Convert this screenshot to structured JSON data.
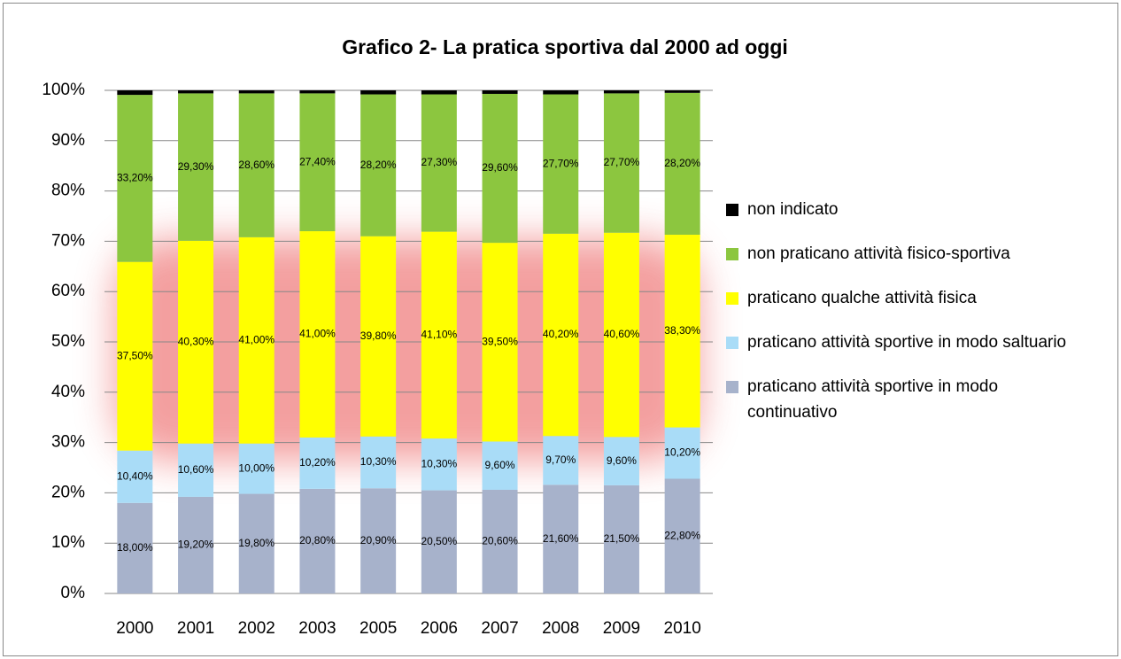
{
  "chart_data": {
    "type": "stacked_bar",
    "title": "Grafico 2- La pratica sportiva dal 2000 ad oggi",
    "categories": [
      "2000",
      "2001",
      "2002",
      "2003",
      "2005",
      "2006",
      "2007",
      "2008",
      "2009",
      "2010"
    ],
    "series": [
      {
        "name": "praticano attività sportive in modo continuativo",
        "color": "#a7b2cb",
        "values": [
          18.0,
          19.2,
          19.8,
          20.8,
          20.9,
          20.5,
          20.6,
          21.6,
          21.5,
          22.8
        ],
        "value_labels": [
          "18,00%",
          "19,20%",
          "19,80%",
          "20,80%",
          "20,90%",
          "20,50%",
          "20,60%",
          "21,60%",
          "21,50%",
          "22,80%"
        ]
      },
      {
        "name": "praticano attività sportive in modo saltuario",
        "color": "#a9dcf7",
        "values": [
          10.4,
          10.6,
          10.0,
          10.2,
          10.3,
          10.3,
          9.6,
          9.7,
          9.6,
          10.2
        ],
        "value_labels": [
          "10,40%",
          "10,60%",
          "10,00%",
          "10,20%",
          "10,30%",
          "10,30%",
          "9,60%",
          "9,70%",
          "9,60%",
          "10,20%"
        ]
      },
      {
        "name": "praticano qualche attività fisica",
        "color": "#ffff00",
        "values": [
          37.5,
          40.3,
          41.0,
          41.0,
          39.8,
          41.1,
          39.5,
          40.2,
          40.6,
          38.3
        ],
        "value_labels": [
          "37,50%",
          "40,30%",
          "41,00%",
          "41,00%",
          "39,80%",
          "41,10%",
          "39,50%",
          "40,20%",
          "40,60%",
          "38,30%"
        ]
      },
      {
        "name": "non praticano attività fisico-sportiva",
        "color": "#8cc63f",
        "values": [
          33.2,
          29.3,
          28.6,
          27.4,
          28.2,
          27.3,
          29.6,
          27.7,
          27.7,
          28.2
        ],
        "value_labels": [
          "33,20%",
          "29,30%",
          "28,60%",
          "27,40%",
          "28,20%",
          "27,30%",
          "29,60%",
          "27,70%",
          "27,70%",
          "28,20%"
        ]
      },
      {
        "name": "non indicato",
        "color": "#000000",
        "values": [
          0.9,
          0.6,
          0.6,
          0.6,
          0.8,
          0.8,
          0.7,
          0.8,
          0.6,
          0.5
        ]
      }
    ],
    "ylim": [
      0,
      100
    ],
    "yticks": [
      {
        "value": 0,
        "label": "0%"
      },
      {
        "value": 10,
        "label": "10%"
      },
      {
        "value": 20,
        "label": "20%"
      },
      {
        "value": 30,
        "label": "30%"
      },
      {
        "value": 40,
        "label": "40%"
      },
      {
        "value": 50,
        "label": "50%"
      },
      {
        "value": 60,
        "label": "60%"
      },
      {
        "value": 70,
        "label": "70%"
      },
      {
        "value": 80,
        "label": "80%"
      },
      {
        "value": 90,
        "label": "90%"
      },
      {
        "value": 100,
        "label": "100%"
      }
    ],
    "grid": true,
    "legend": "right"
  }
}
